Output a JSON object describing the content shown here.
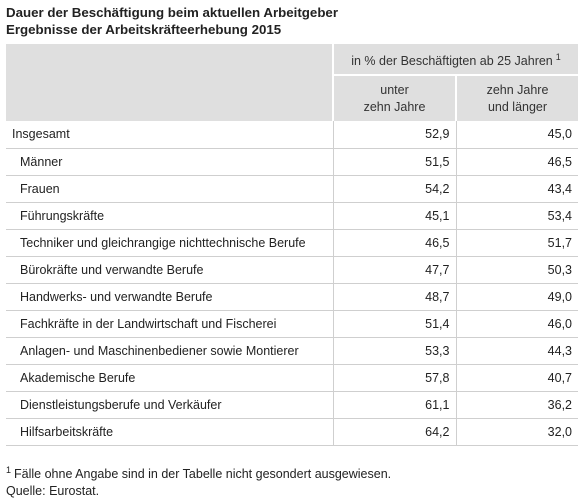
{
  "title_line1": "Dauer der Beschäftigung beim aktuellen Arbeitgeber",
  "title_line2": "Ergebnisse der Arbeitskräfteerhebung 2015",
  "header": {
    "group_label": "in % der Beschäftigten ab 25 Jahren",
    "group_footnote": "1",
    "col1_line1": "unter",
    "col1_line2": "zehn Jahre",
    "col2_line1": "zehn Jahre",
    "col2_line2": "und länger"
  },
  "rows": [
    {
      "label": "Insgesamt",
      "a": "52,9",
      "b": "45,0"
    },
    {
      "label": "Männer",
      "a": "51,5",
      "b": "46,5"
    },
    {
      "label": "Frauen",
      "a": "54,2",
      "b": "43,4"
    },
    {
      "label": "Führungskräfte",
      "a": "45,1",
      "b": "53,4"
    },
    {
      "label": "Techniker und gleichrangige nichttechnische Berufe",
      "a": "46,5",
      "b": "51,7"
    },
    {
      "label": "Bürokräfte und verwandte Berufe",
      "a": "47,7",
      "b": "50,3"
    },
    {
      "label": "Handwerks- und verwandte Berufe",
      "a": "48,7",
      "b": "49,0"
    },
    {
      "label": "Fachkräfte in der Landwirtschaft und Fischerei",
      "a": "51,4",
      "b": "46,0"
    },
    {
      "label": "Anlagen- und Maschinenbediener sowie Montierer",
      "a": "53,3",
      "b": "44,3"
    },
    {
      "label": "Akademische Berufe",
      "a": "57,8",
      "b": "40,7"
    },
    {
      "label": "Dienstleistungsberufe und Verkäufer",
      "a": "61,1",
      "b": "36,2"
    },
    {
      "label": "Hilfsarbeitskräfte",
      "a": "64,2",
      "b": "32,0"
    }
  ],
  "footnote_marker": "1",
  "footnote_text": "Fälle ohne Angabe sind in der Tabelle nicht gesondert ausgewiesen.",
  "source": "Quelle: Eurostat."
}
